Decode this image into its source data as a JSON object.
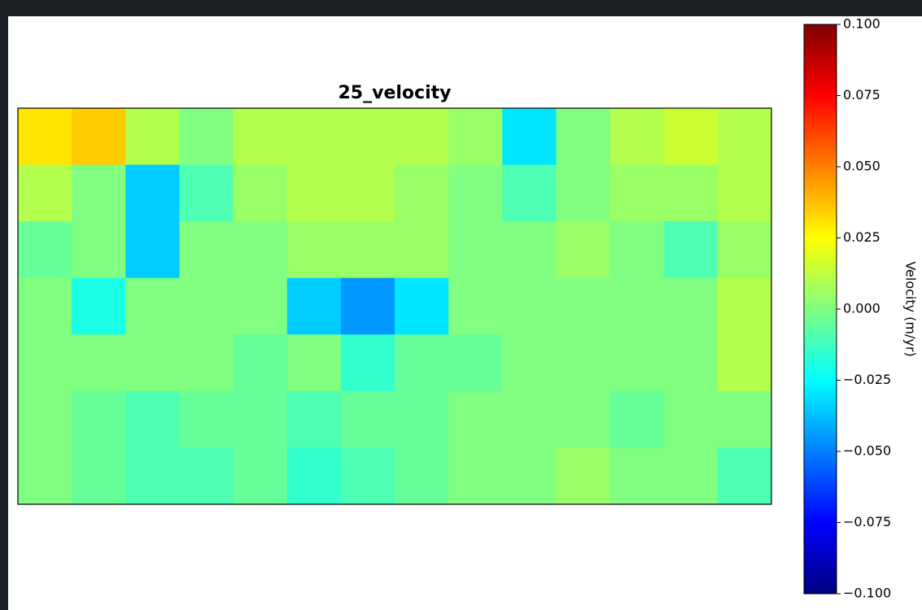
{
  "chart_data": {
    "type": "heatmap",
    "title": "25_velocity",
    "colormap": "jet",
    "clim": [
      -0.1,
      0.1
    ],
    "colorbar_label": "Velocity (m/yr)",
    "colorbar_ticks": [
      {
        "value": 0.1,
        "label": "0.100"
      },
      {
        "value": 0.075,
        "label": "0.075"
      },
      {
        "value": 0.05,
        "label": "0.050"
      },
      {
        "value": 0.025,
        "label": "0.025"
      },
      {
        "value": 0,
        "label": "0.000"
      },
      {
        "value": -0.025,
        "label": "−0.025"
      },
      {
        "value": -0.05,
        "label": "−0.050"
      },
      {
        "value": -0.075,
        "label": "−0.075"
      },
      {
        "value": -0.1,
        "label": "−0.100"
      }
    ],
    "values": [
      [
        0.03,
        0.035,
        0.01,
        0.0,
        0.01,
        0.01,
        0.01,
        0.01,
        0.005,
        -0.03,
        0.0,
        0.01,
        0.015,
        0.01
      ],
      [
        0.01,
        0.0,
        -0.035,
        -0.01,
        0.005,
        0.01,
        0.01,
        0.005,
        0.0,
        -0.01,
        0.0,
        0.005,
        0.005,
        0.01
      ],
      [
        -0.005,
        0.0,
        -0.035,
        0.0,
        0.0,
        0.005,
        0.005,
        0.005,
        0.0,
        0.0,
        0.005,
        0.0,
        -0.01,
        0.005
      ],
      [
        0.0,
        -0.02,
        0.0,
        0.0,
        0.0,
        -0.035,
        -0.045,
        -0.03,
        0.0,
        0.0,
        0.0,
        0.0,
        0.0,
        0.01
      ],
      [
        0.0,
        0.0,
        0.0,
        0.0,
        -0.005,
        0.0,
        -0.015,
        -0.005,
        -0.005,
        0.0,
        0.0,
        0.0,
        0.0,
        0.01
      ],
      [
        0.0,
        -0.005,
        -0.01,
        -0.005,
        -0.005,
        -0.01,
        -0.005,
        -0.005,
        0.0,
        0.0,
        0.0,
        -0.005,
        0.0,
        0.0
      ],
      [
        0.0,
        -0.005,
        -0.01,
        -0.01,
        -0.005,
        -0.015,
        -0.01,
        -0.005,
        0.0,
        0.0,
        0.005,
        0.0,
        0.0,
        -0.01
      ]
    ]
  }
}
